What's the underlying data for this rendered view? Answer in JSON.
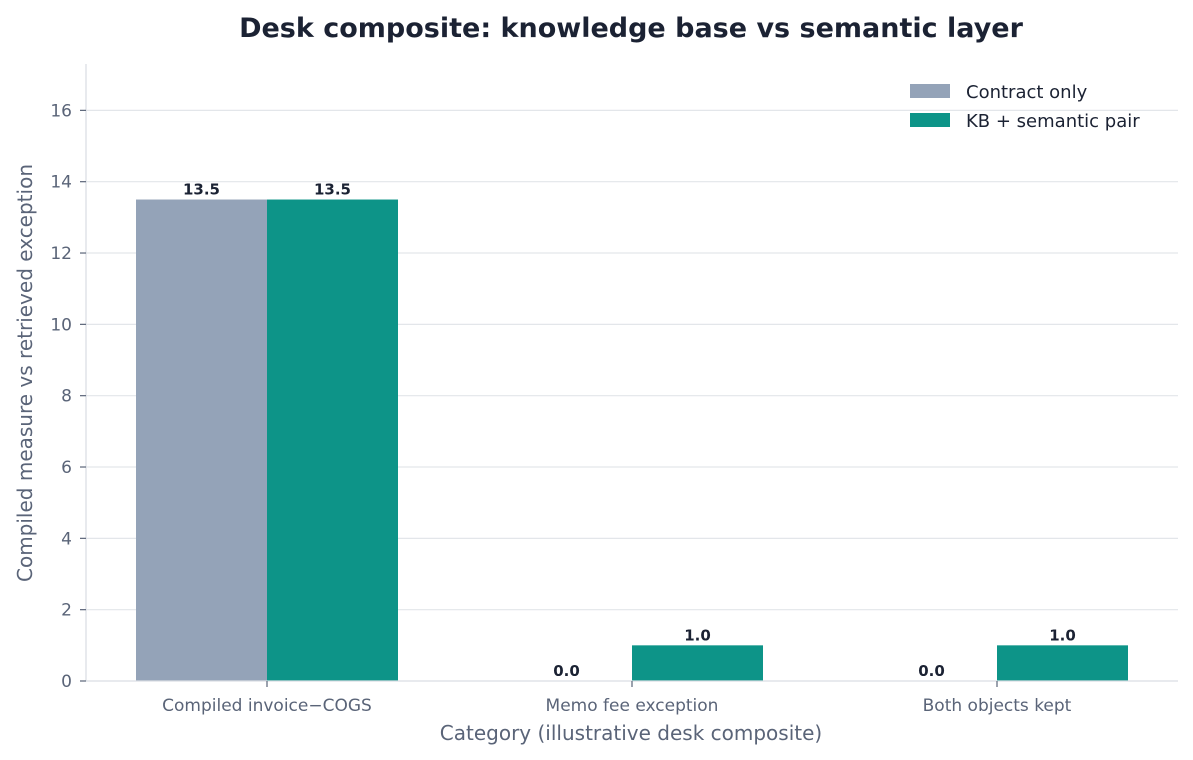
{
  "chart_data": {
    "type": "bar",
    "title": "Desk composite: knowledge base vs semantic layer",
    "xlabel": "Category (illustrative desk composite)",
    "ylabel": "Compiled measure vs retrieved exception",
    "categories": [
      "Compiled invoice−COGS",
      "Memo fee exception",
      "Both objects kept"
    ],
    "series": [
      {
        "name": "Contract only",
        "color": "#94a3b8",
        "values": [
          13.5,
          0.0,
          0.0
        ],
        "labels": [
          "13.5",
          "0.0",
          "0.0"
        ]
      },
      {
        "name": "KB + semantic pair",
        "color": "#0d9488",
        "values": [
          13.5,
          1.0,
          1.0
        ],
        "labels": [
          "13.5",
          "1.0",
          "1.0"
        ]
      }
    ],
    "ylim": [
      0,
      17.3
    ],
    "yticks": [
      0,
      2,
      4,
      6,
      8,
      10,
      12,
      14,
      16
    ],
    "grid": true,
    "legend_position": "top-right"
  }
}
